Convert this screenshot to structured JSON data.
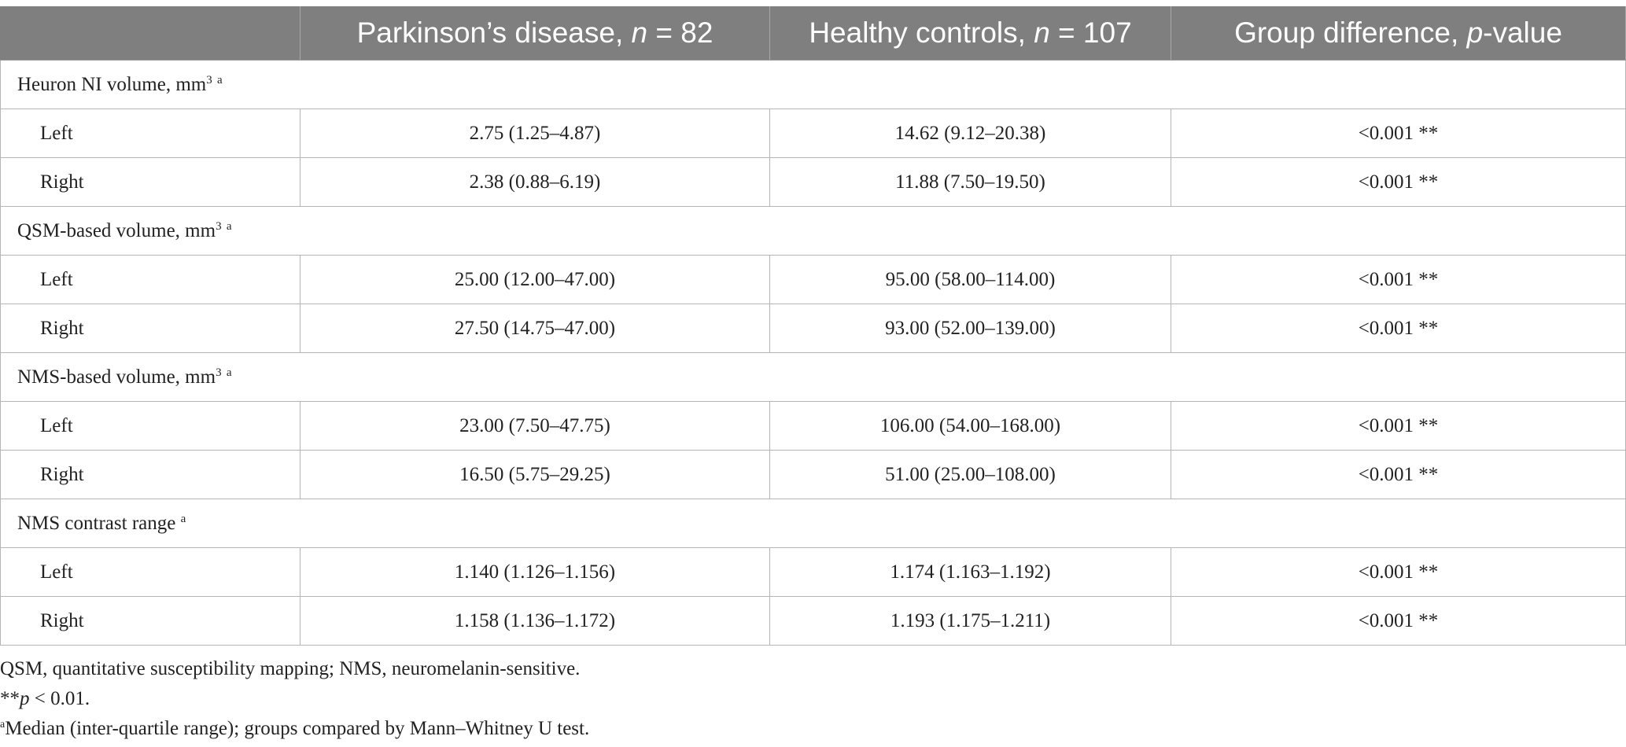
{
  "table": {
    "headers": [
      {
        "text": "",
        "italic": "",
        "suffix": ""
      },
      {
        "text": "Parkinson’s disease, ",
        "italic": "n",
        "suffix": " = 82"
      },
      {
        "text": "Healthy controls, ",
        "italic": "n",
        "suffix": " = 107"
      },
      {
        "text": "Group difference, ",
        "italic": "p",
        "suffix": "-value"
      }
    ],
    "sections": [
      {
        "label": "Heuron NI volume, mm",
        "sup_unit": "3",
        "sup_note": "a",
        "rows": [
          {
            "side": "Left",
            "pd": "2.75 (1.25–4.87)",
            "hc": "14.62 (9.12–20.38)",
            "p": "<0.001 **"
          },
          {
            "side": "Right",
            "pd": "2.38 (0.88–6.19)",
            "hc": "11.88 (7.50–19.50)",
            "p": "<0.001 **"
          }
        ]
      },
      {
        "label": "QSM-based volume, mm",
        "sup_unit": "3",
        "sup_note": "a",
        "rows": [
          {
            "side": "Left",
            "pd": "25.00 (12.00–47.00)",
            "hc": "95.00 (58.00–114.00)",
            "p": "<0.001 **"
          },
          {
            "side": "Right",
            "pd": "27.50 (14.75–47.00)",
            "hc": "93.00 (52.00–139.00)",
            "p": "<0.001 **"
          }
        ]
      },
      {
        "label": "NMS-based volume, mm",
        "sup_unit": "3",
        "sup_note": "a",
        "rows": [
          {
            "side": "Left",
            "pd": "23.00 (7.50–47.75)",
            "hc": "106.00 (54.00–168.00)",
            "p": "<0.001 **"
          },
          {
            "side": "Right",
            "pd": "16.50 (5.75–29.25)",
            "hc": "51.00 (25.00–108.00)",
            "p": "<0.001 **"
          }
        ]
      },
      {
        "label": "NMS contrast range",
        "sup_unit": "",
        "sup_note": "a",
        "rows": [
          {
            "side": "Left",
            "pd": "1.140 (1.126–1.156)",
            "hc": "1.174 (1.163–1.192)",
            "p": "<0.001 **"
          },
          {
            "side": "Right",
            "pd": "1.158 (1.136–1.172)",
            "hc": "1.193 (1.175–1.211)",
            "p": "<0.001 **"
          }
        ]
      }
    ]
  },
  "footnotes": {
    "abbrev": "QSM, quantitative susceptibility mapping; NMS, neuromelanin-sensitive.",
    "sig_prefix": "**",
    "sig_italic": "p",
    "sig_rest": " < 0.01.",
    "a_mark": "a",
    "a_text": "Median (inter-quartile range); groups compared by Mann–Whitney U test."
  }
}
